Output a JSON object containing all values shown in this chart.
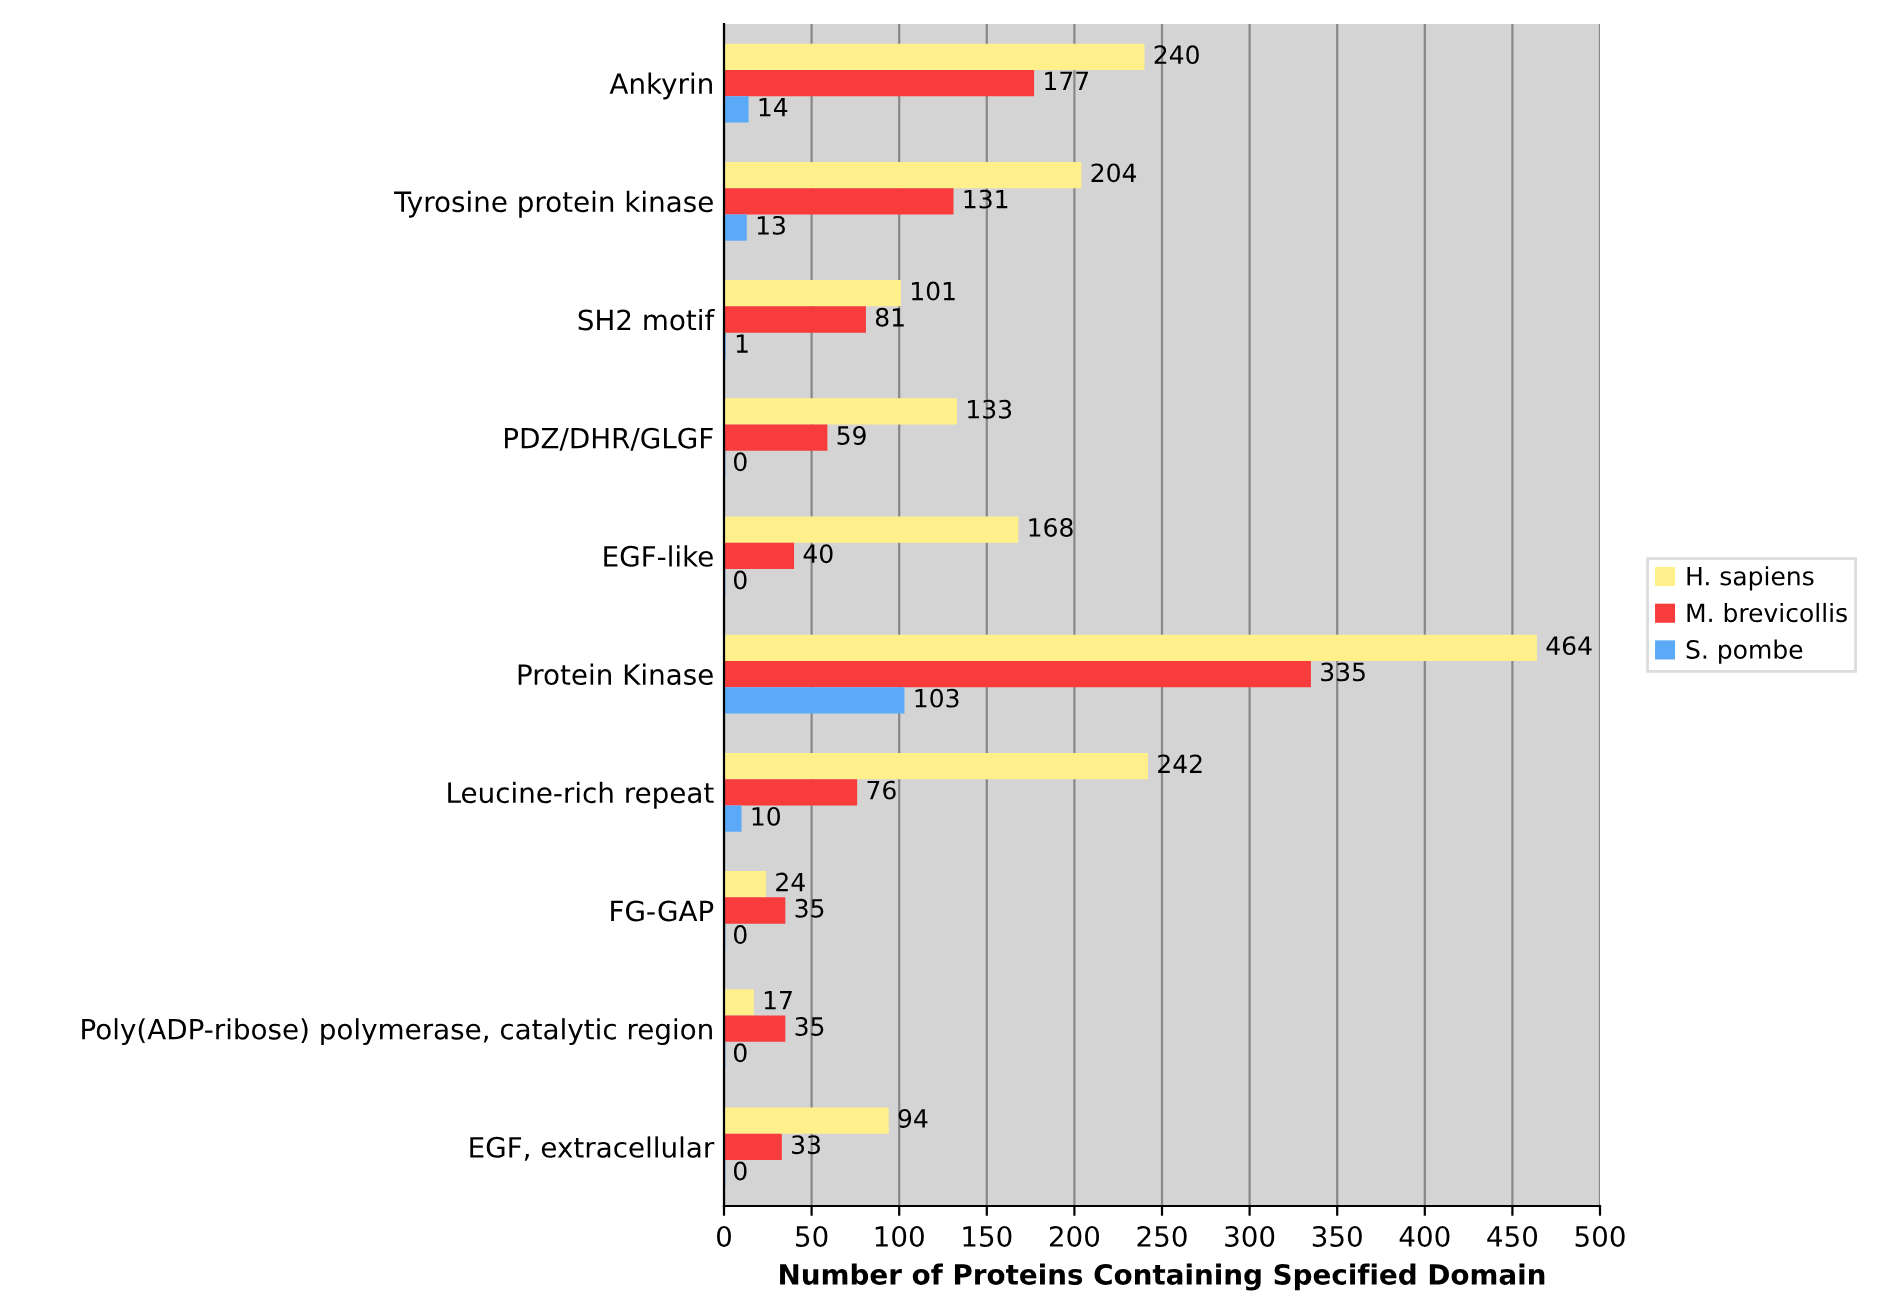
{
  "chart_data": {
    "type": "bar",
    "orientation": "horizontal",
    "xlabel": "Number of Proteins Containing Specified Domain",
    "categories": [
      "Ankyrin",
      "Tyrosine protein kinase",
      "SH2 motif",
      "PDZ/DHR/GLGF",
      "EGF-like",
      "Protein Kinase",
      "Leucine-rich repeat",
      "FG-GAP",
      "Poly(ADP-ribose) polymerase, catalytic region",
      "EGF, extracellular"
    ],
    "series": [
      {
        "name": "H. sapiens",
        "color": "#fff08c",
        "values": [
          240,
          204,
          101,
          133,
          168,
          464,
          242,
          24,
          17,
          94
        ]
      },
      {
        "name": "M. brevicollis",
        "color": "#f83c3c",
        "values": [
          177,
          131,
          81,
          59,
          40,
          335,
          76,
          35,
          35,
          33
        ]
      },
      {
        "name": "S. pombe",
        "color": "#5aaaf8",
        "values": [
          14,
          13,
          1,
          0,
          0,
          103,
          10,
          0,
          0,
          0
        ]
      }
    ],
    "xlim": [
      0,
      500
    ],
    "xticks": [
      0,
      50,
      100,
      150,
      200,
      250,
      300,
      350,
      400,
      450,
      500
    ],
    "grid": "x",
    "legend": "right",
    "data_labels": true
  }
}
